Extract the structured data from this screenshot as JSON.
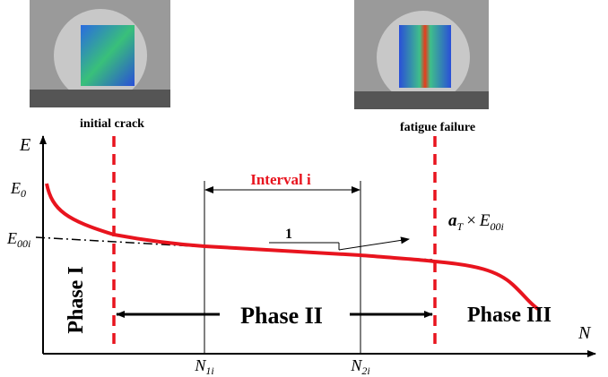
{
  "photos": [
    {
      "caption": "initial crack"
    },
    {
      "caption": "fatigue failure"
    }
  ],
  "axes": {
    "y_label": "E",
    "x_label": "N"
  },
  "labels": {
    "e0": {
      "base": "E",
      "sub": "0"
    },
    "e00i": {
      "base": "E",
      "sub": "00i"
    },
    "n1i": {
      "base": "N",
      "sub": "1i"
    },
    "n2i": {
      "base": "N",
      "sub": "2i"
    },
    "interval": "Interval i",
    "slope": "1",
    "rate": {
      "base": "a",
      "sub": "T",
      "op": "×",
      "base2": "E",
      "sub2": "00i"
    }
  },
  "phases": [
    "Phase I",
    "Phase II",
    "Phase III"
  ]
}
